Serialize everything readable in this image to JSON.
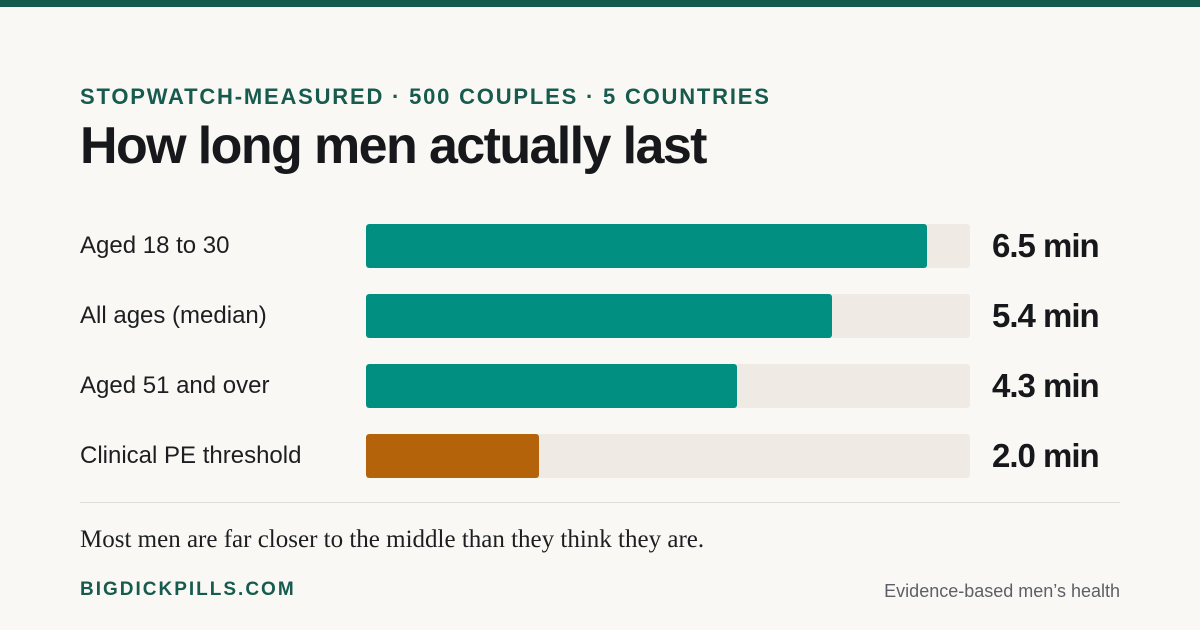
{
  "header": {
    "kicker": "STOPWATCH-MEASURED · 500 COUPLES · 5 COUNTRIES",
    "title": "How long men actually last"
  },
  "chart_data": {
    "type": "bar",
    "orientation": "horizontal",
    "categories": [
      "Aged 18 to 30",
      "All ages (median)",
      "Aged 51 and over",
      "Clinical PE threshold"
    ],
    "values": [
      6.5,
      5.4,
      4.3,
      2.0
    ],
    "value_labels": [
      "6.5 min",
      "5.4 min",
      "4.3 min",
      "2.0 min"
    ],
    "unit": "min",
    "xlim": [
      0,
      7
    ],
    "colors": [
      "#008f80",
      "#008f80",
      "#008f80",
      "#b5630b"
    ],
    "track_color": "#efebe4"
  },
  "footer": {
    "caption": "Most men are far closer to the middle than they think they are.",
    "brand": "BIGDICKPILLS.COM",
    "tagline": "Evidence-based men’s health"
  },
  "colors": {
    "accent": "#165b4e",
    "bar": "#008f80",
    "highlight": "#b5630b",
    "background": "#faf8f4"
  }
}
